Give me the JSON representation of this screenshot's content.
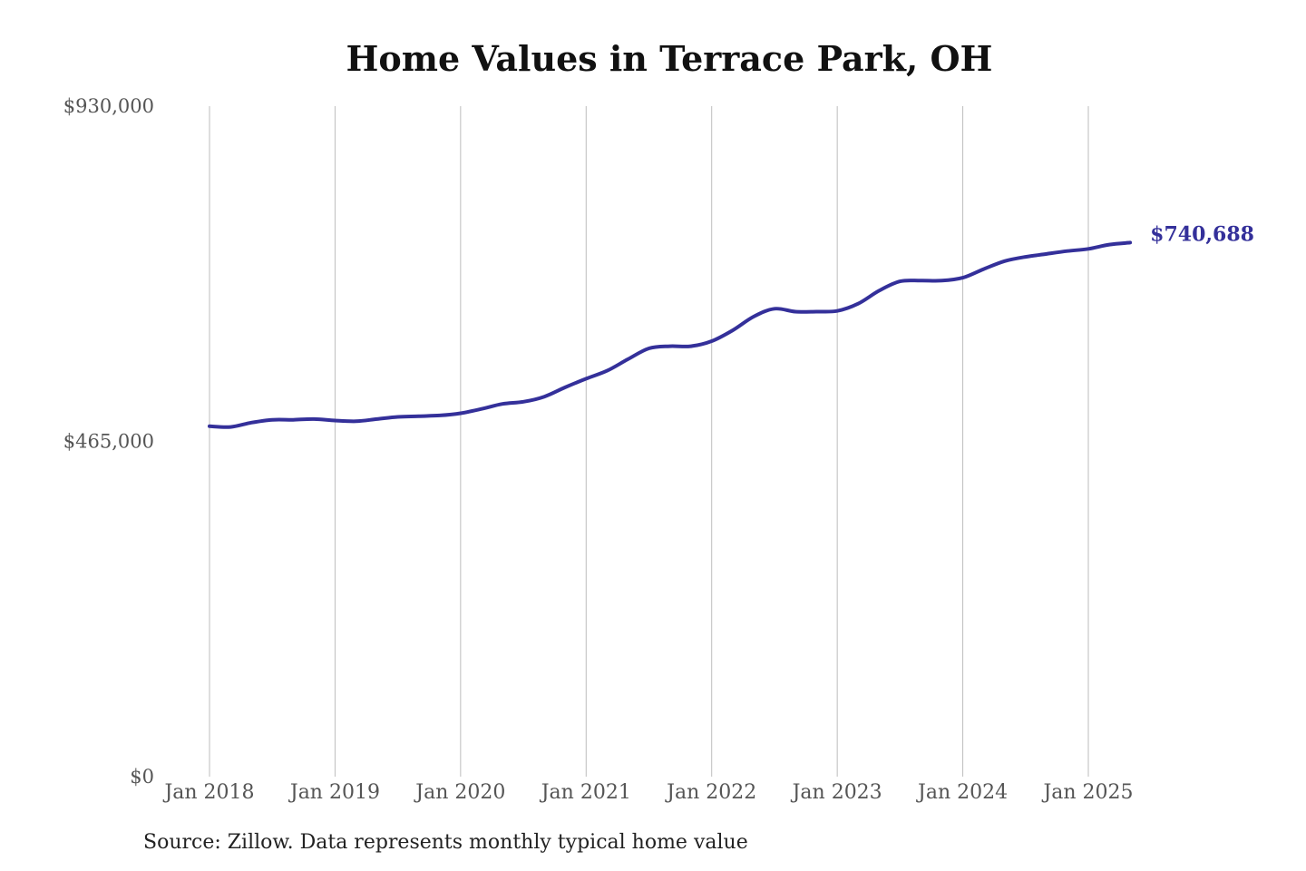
{
  "chart_data": {
    "type": "line",
    "title": "Home Values in Terrace Park, OH",
    "source": "Source: Zillow. Data represents monthly typical home value",
    "xlabel": "",
    "ylabel": "",
    "ylim": [
      0,
      930000
    ],
    "y_ticks": [
      {
        "value": 0,
        "label": "$0"
      },
      {
        "value": 465000,
        "label": "$465,000"
      },
      {
        "value": 930000,
        "label": "$930,000"
      }
    ],
    "x_range": [
      "2018-01",
      "2025-05"
    ],
    "x_ticks": [
      {
        "date": "2018-01",
        "label": "Jan 2018"
      },
      {
        "date": "2019-01",
        "label": "Jan 2019"
      },
      {
        "date": "2020-01",
        "label": "Jan 2020"
      },
      {
        "date": "2021-01",
        "label": "Jan 2021"
      },
      {
        "date": "2022-01",
        "label": "Jan 2022"
      },
      {
        "date": "2023-01",
        "label": "Jan 2023"
      },
      {
        "date": "2024-01",
        "label": "Jan 2024"
      },
      {
        "date": "2025-01",
        "label": "Jan 2025"
      }
    ],
    "grid": "vertical",
    "line_color": "#34309a",
    "end_label": "$740,688",
    "series": [
      {
        "points": [
          [
            "2018-01",
            486000
          ],
          [
            "2018-03",
            485000
          ],
          [
            "2018-05",
            491000
          ],
          [
            "2018-07",
            495000
          ],
          [
            "2018-09",
            495000
          ],
          [
            "2018-11",
            496000
          ],
          [
            "2019-01",
            494000
          ],
          [
            "2019-03",
            493000
          ],
          [
            "2019-05",
            496000
          ],
          [
            "2019-07",
            499000
          ],
          [
            "2019-09",
            500000
          ],
          [
            "2019-11",
            501000
          ],
          [
            "2020-01",
            504000
          ],
          [
            "2020-03",
            510000
          ],
          [
            "2020-05",
            517000
          ],
          [
            "2020-07",
            520000
          ],
          [
            "2020-09",
            527000
          ],
          [
            "2020-11",
            540000
          ],
          [
            "2021-01",
            552000
          ],
          [
            "2021-03",
            563000
          ],
          [
            "2021-05",
            579000
          ],
          [
            "2021-07",
            594000
          ],
          [
            "2021-09",
            597000
          ],
          [
            "2021-11",
            597000
          ],
          [
            "2022-01",
            604000
          ],
          [
            "2022-03",
            619000
          ],
          [
            "2022-05",
            638000
          ],
          [
            "2022-07",
            649000
          ],
          [
            "2022-09",
            645000
          ],
          [
            "2022-11",
            645000
          ],
          [
            "2023-01",
            646000
          ],
          [
            "2023-03",
            656000
          ],
          [
            "2023-05",
            674000
          ],
          [
            "2023-07",
            687000
          ],
          [
            "2023-09",
            688000
          ],
          [
            "2023-11",
            688000
          ],
          [
            "2024-01",
            692000
          ],
          [
            "2024-03",
            704000
          ],
          [
            "2024-05",
            715000
          ],
          [
            "2024-07",
            721000
          ],
          [
            "2024-09",
            725000
          ],
          [
            "2024-11",
            729000
          ],
          [
            "2025-01",
            732000
          ],
          [
            "2025-03",
            738000
          ],
          [
            "2025-05",
            740688
          ]
        ]
      }
    ]
  }
}
